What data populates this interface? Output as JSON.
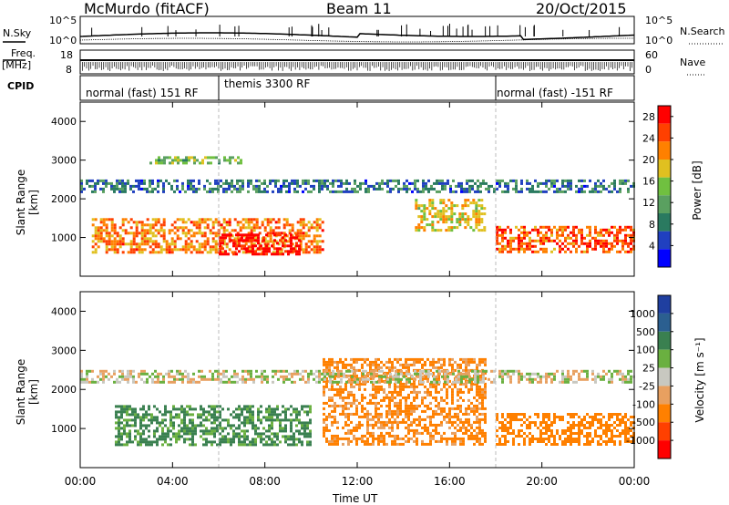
{
  "header": {
    "station": "McMurdo (fitACF)",
    "beam": "Beam 11",
    "date": "20/Oct/2015"
  },
  "side_labels": {
    "nsky": "N.Sky",
    "freq_line1": "Freq.",
    "freq_line2": "[MHz]",
    "cpid": "CPID",
    "nsearch": "N.Search",
    "nave": "Nave"
  },
  "noise_axis": {
    "left_top": "10^5",
    "left_bottom": "10^0",
    "right_top": "10^5",
    "right_bottom": "10^0"
  },
  "freq_axis": {
    "left_top": "18",
    "left_bottom": "8",
    "right_top": "60",
    "right_bottom": "0"
  },
  "cpid_segments": [
    {
      "label": "normal (fast) 151 RF",
      "start_hour": 0,
      "end_hour": 6
    },
    {
      "label": "themis 3300 RF",
      "start_hour": 6,
      "end_hour": 18
    },
    {
      "label": "normal (fast) -151 RF",
      "start_hour": 18,
      "end_hour": 24
    }
  ],
  "colors": {
    "power": [
      "#0000ff",
      "#2040c0",
      "#2a7a60",
      "#5aa060",
      "#70c040",
      "#e0c020",
      "#ff8000",
      "#ff4000",
      "#ff0000"
    ],
    "velocity": [
      "#1f3fa0",
      "#2b5f90",
      "#3a8050",
      "#6ab040",
      "#c8c8c0",
      "#e8a060",
      "#ff8000",
      "#ff4000",
      "#ff0000"
    ]
  },
  "chart_data": [
    {
      "type": "heatmap",
      "name": "power",
      "ylabel": "Slant Range [km]",
      "yticks": [
        "1000",
        "2000",
        "3000",
        "4000"
      ],
      "ylim": [
        0,
        4500
      ],
      "xlim": [
        0,
        24
      ],
      "colorbar": {
        "label": "Power [dB]",
        "ticks": [
          "4",
          "8",
          "12",
          "16",
          "20",
          "24",
          "28"
        ],
        "range": [
          0,
          30
        ]
      },
      "bands": [
        {
          "t_start": 0.5,
          "t_end": 10.5,
          "r_low": 600,
          "r_high": 1500,
          "level": 22
        },
        {
          "t_start": 6.0,
          "t_end": 9.5,
          "r_low": 600,
          "r_high": 1100,
          "level": 29
        },
        {
          "t_start": 14.5,
          "t_end": 17.5,
          "r_low": 1200,
          "r_high": 2000,
          "level": 18
        },
        {
          "t_start": 18.0,
          "t_end": 24.0,
          "r_low": 600,
          "r_high": 1300,
          "level": 24
        },
        {
          "t_start": 0.0,
          "t_end": 24.0,
          "r_low": 2200,
          "r_high": 2500,
          "level": 8
        },
        {
          "t_start": 3.0,
          "t_end": 7.0,
          "r_low": 2900,
          "r_high": 3100,
          "level": 14
        }
      ]
    },
    {
      "type": "heatmap",
      "name": "velocity",
      "ylabel": "Slant Range [km]",
      "yticks": [
        "1000",
        "2000",
        "3000",
        "4000"
      ],
      "ylim": [
        0,
        4500
      ],
      "xlim": [
        0,
        24
      ],
      "xlabel": "Time UT",
      "xticks": [
        "00:00",
        "04:00",
        "08:00",
        "12:00",
        "16:00",
        "20:00",
        "00:00"
      ],
      "colorbar": {
        "label": "Velocity [m s⁻¹]",
        "ticks": [
          "1000",
          "500",
          "100",
          "25",
          "-25",
          "-100",
          "-500",
          "-1000"
        ],
        "range": [
          -1000,
          1000
        ]
      },
      "bands": [
        {
          "t_start": 1.5,
          "t_end": 10.0,
          "r_low": 600,
          "r_high": 1600,
          "velocity": 150
        },
        {
          "t_start": 10.5,
          "t_end": 17.5,
          "r_low": 600,
          "r_high": 2800,
          "velocity": -150
        },
        {
          "t_start": 18.0,
          "t_end": 24.0,
          "r_low": 600,
          "r_high": 1400,
          "velocity": -200
        },
        {
          "t_start": 0.0,
          "t_end": 24.0,
          "r_low": 2200,
          "r_high": 2500,
          "velocity": 0
        }
      ]
    }
  ]
}
